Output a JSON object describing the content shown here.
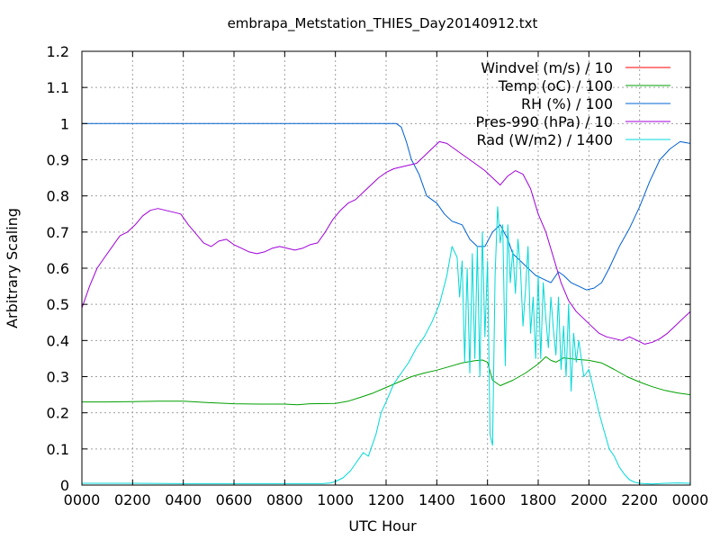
{
  "chart_data": {
    "type": "line",
    "title": "embrapa_Metstation_THIES_Day20140912.txt",
    "xlabel": "UTC Hour",
    "ylabel": "Arbitrary Scaling",
    "xlim": [
      0,
      24
    ],
    "ylim": [
      0,
      1.2
    ],
    "grid": true,
    "legend_position": "top-right",
    "x_tick_labels": [
      "0000",
      "0200",
      "0400",
      "0600",
      "0800",
      "1000",
      "1200",
      "1400",
      "1600",
      "1800",
      "2000",
      "2200",
      "0000"
    ],
    "y_tick_labels": [
      "0",
      "0.1",
      "0.2",
      "0.3",
      "0.4",
      "0.5",
      "0.6",
      "0.7",
      "0.8",
      "0.9",
      "1",
      "1.1",
      "1.2"
    ],
    "series": [
      {
        "name": "Windvel (m/s) / 10",
        "color": "#ff0000",
        "x": [],
        "y": []
      },
      {
        "name": "Temp (oC) / 100",
        "color": "#00a000",
        "x": [
          0,
          1,
          2,
          3,
          4,
          5,
          6,
          7,
          8,
          8.5,
          9,
          10,
          10.5,
          11,
          11.5,
          12,
          12.5,
          13,
          13.5,
          14,
          14.5,
          15,
          15.5,
          15.8,
          16,
          16.2,
          16.5,
          17,
          17.5,
          18,
          18.3,
          18.5,
          18.7,
          19,
          19.5,
          20,
          20.5,
          21,
          21.5,
          22,
          22.5,
          23,
          23.5,
          24
        ],
        "y": [
          0.23,
          0.23,
          0.231,
          0.232,
          0.232,
          0.228,
          0.225,
          0.224,
          0.224,
          0.222,
          0.225,
          0.226,
          0.232,
          0.243,
          0.255,
          0.27,
          0.285,
          0.3,
          0.31,
          0.318,
          0.328,
          0.338,
          0.344,
          0.346,
          0.34,
          0.29,
          0.275,
          0.29,
          0.31,
          0.335,
          0.355,
          0.345,
          0.34,
          0.352,
          0.348,
          0.345,
          0.338,
          0.32,
          0.3,
          0.285,
          0.272,
          0.262,
          0.255,
          0.25
        ]
      },
      {
        "name": "RH (%) / 100",
        "color": "#0060d0",
        "x": [
          0,
          1,
          2,
          3,
          4,
          5,
          6,
          7,
          8,
          9,
          10,
          11,
          12,
          12.4,
          12.6,
          12.8,
          13,
          13.3,
          13.6,
          14,
          14.3,
          14.6,
          15,
          15.3,
          15.6,
          15.9,
          16.2,
          16.5,
          16.8,
          17,
          17.3,
          17.6,
          17.9,
          18.2,
          18.5,
          18.8,
          19,
          19.3,
          19.6,
          19.9,
          20.2,
          20.5,
          20.8,
          21.2,
          21.6,
          22,
          22.4,
          22.8,
          23.2,
          23.6,
          24
        ],
        "y": [
          1,
          1,
          1,
          1,
          1,
          1,
          1,
          1,
          1,
          1,
          1,
          1,
          1,
          1,
          0.99,
          0.95,
          0.9,
          0.86,
          0.8,
          0.78,
          0.75,
          0.73,
          0.72,
          0.68,
          0.66,
          0.66,
          0.7,
          0.72,
          0.68,
          0.64,
          0.62,
          0.6,
          0.58,
          0.57,
          0.56,
          0.59,
          0.58,
          0.56,
          0.55,
          0.54,
          0.545,
          0.56,
          0.6,
          0.66,
          0.71,
          0.77,
          0.84,
          0.9,
          0.93,
          0.95,
          0.945
        ]
      },
      {
        "name": "Pres-990 (hPa) / 10",
        "color": "#a000d8",
        "x": [
          0,
          0.3,
          0.6,
          0.9,
          1.2,
          1.5,
          1.8,
          2.1,
          2.4,
          2.7,
          3,
          3.3,
          3.6,
          3.9,
          4.2,
          4.5,
          4.8,
          5.1,
          5.4,
          5.7,
          6,
          6.3,
          6.6,
          6.9,
          7.2,
          7.5,
          7.8,
          8.1,
          8.4,
          8.7,
          9,
          9.3,
          9.6,
          9.9,
          10.2,
          10.5,
          10.8,
          11.1,
          11.4,
          11.7,
          12,
          12.3,
          12.6,
          12.9,
          13.2,
          13.5,
          13.8,
          14.1,
          14.4,
          14.7,
          15,
          15.3,
          15.6,
          15.9,
          16.2,
          16.5,
          16.8,
          17.1,
          17.4,
          17.7,
          18,
          18.3,
          18.6,
          18.9,
          19.2,
          19.5,
          19.8,
          20.1,
          20.4,
          20.7,
          21,
          21.3,
          21.6,
          21.9,
          22.2,
          22.5,
          22.8,
          23.1,
          23.4,
          23.7,
          24
        ],
        "y": [
          0.49,
          0.55,
          0.6,
          0.63,
          0.66,
          0.69,
          0.7,
          0.72,
          0.745,
          0.76,
          0.765,
          0.76,
          0.755,
          0.75,
          0.72,
          0.695,
          0.67,
          0.66,
          0.675,
          0.68,
          0.665,
          0.655,
          0.645,
          0.64,
          0.645,
          0.655,
          0.66,
          0.655,
          0.65,
          0.655,
          0.665,
          0.67,
          0.7,
          0.735,
          0.76,
          0.78,
          0.79,
          0.81,
          0.83,
          0.85,
          0.865,
          0.875,
          0.88,
          0.885,
          0.89,
          0.91,
          0.93,
          0.95,
          0.945,
          0.93,
          0.915,
          0.9,
          0.885,
          0.87,
          0.85,
          0.83,
          0.855,
          0.87,
          0.86,
          0.82,
          0.75,
          0.7,
          0.63,
          0.56,
          0.51,
          0.48,
          0.46,
          0.44,
          0.42,
          0.41,
          0.405,
          0.4,
          0.41,
          0.4,
          0.39,
          0.395,
          0.405,
          0.42,
          0.44,
          0.46,
          0.48
        ]
      },
      {
        "name": "Rad (W/m2) / 1400",
        "color": "#00d8d8",
        "x": [
          0,
          2,
          4,
          6,
          8,
          9,
          9.5,
          9.8,
          10,
          10.3,
          10.6,
          10.9,
          11.1,
          11.3,
          11.6,
          11.8,
          12,
          12.3,
          12.6,
          12.9,
          13.2,
          13.5,
          13.8,
          14.1,
          14.4,
          14.6,
          14.8,
          14.9,
          15.0,
          15.1,
          15.2,
          15.3,
          15.4,
          15.5,
          15.6,
          15.7,
          15.8,
          15.9,
          16.0,
          16.1,
          16.2,
          16.3,
          16.4,
          16.5,
          16.6,
          16.7,
          16.8,
          16.9,
          17.0,
          17.1,
          17.2,
          17.3,
          17.4,
          17.5,
          17.6,
          17.7,
          17.8,
          17.9,
          18.0,
          18.1,
          18.2,
          18.3,
          18.4,
          18.5,
          18.6,
          18.7,
          18.8,
          18.9,
          19.0,
          19.1,
          19.2,
          19.3,
          19.4,
          19.5,
          19.6,
          19.8,
          20.0,
          20.2,
          20.4,
          20.6,
          20.8,
          21.0,
          21.2,
          21.4,
          21.6,
          21.8,
          22.0,
          22.2,
          22.5,
          23,
          23.5,
          24
        ],
        "y": [
          0.005,
          0.005,
          0.004,
          0.004,
          0.004,
          0.004,
          0.004,
          0.006,
          0.01,
          0.02,
          0.04,
          0.07,
          0.09,
          0.08,
          0.14,
          0.2,
          0.23,
          0.28,
          0.31,
          0.34,
          0.38,
          0.41,
          0.45,
          0.5,
          0.58,
          0.66,
          0.63,
          0.52,
          0.62,
          0.34,
          0.6,
          0.31,
          0.64,
          0.35,
          0.66,
          0.3,
          0.7,
          0.41,
          0.62,
          0.14,
          0.11,
          0.58,
          0.77,
          0.67,
          0.72,
          0.33,
          0.72,
          0.56,
          0.65,
          0.53,
          0.68,
          0.6,
          0.44,
          0.54,
          0.66,
          0.42,
          0.52,
          0.35,
          0.58,
          0.35,
          0.56,
          0.46,
          0.38,
          0.52,
          0.43,
          0.36,
          0.52,
          0.32,
          0.44,
          0.3,
          0.5,
          0.26,
          0.42,
          0.34,
          0.4,
          0.3,
          0.32,
          0.26,
          0.2,
          0.15,
          0.1,
          0.08,
          0.05,
          0.03,
          0.015,
          0.008,
          0.005,
          0.004,
          0.003,
          0.005,
          0.006,
          0.005
        ]
      }
    ]
  }
}
